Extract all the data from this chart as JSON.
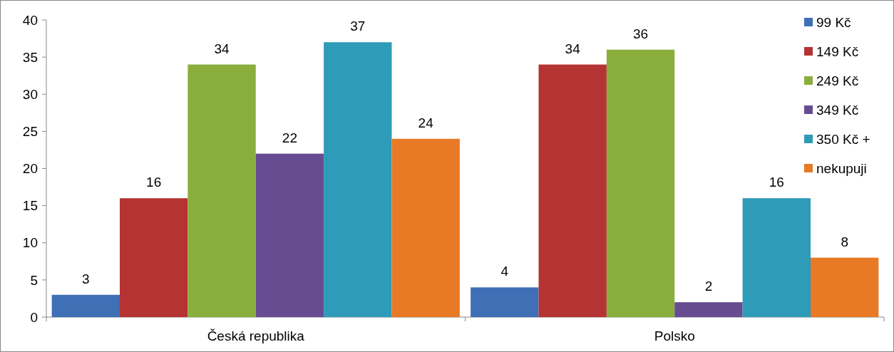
{
  "chart_data": {
    "type": "bar",
    "categories": [
      "Česká republika",
      "Polsko"
    ],
    "series": [
      {
        "name": "99 Kč",
        "color": "#3f6fb5",
        "values": [
          3,
          4
        ]
      },
      {
        "name": "149 Kč",
        "color": "#b53333",
        "values": [
          16,
          34
        ]
      },
      {
        "name": "249 Kč",
        "color": "#8aae3c",
        "values": [
          34,
          36
        ]
      },
      {
        "name": "349 Kč",
        "color": "#674c92",
        "values": [
          22,
          2
        ]
      },
      {
        "name": "350 Kč +",
        "color": "#2e9bb8",
        "values": [
          37,
          16
        ]
      },
      {
        "name": "nekupuji",
        "color": "#e87a26",
        "values": [
          24,
          8
        ]
      }
    ],
    "ylim": [
      0,
      40
    ],
    "yticks": [
      0,
      5,
      10,
      15,
      20,
      25,
      30,
      35,
      40
    ],
    "grid": false,
    "legend": "top right",
    "data_labels": true
  }
}
